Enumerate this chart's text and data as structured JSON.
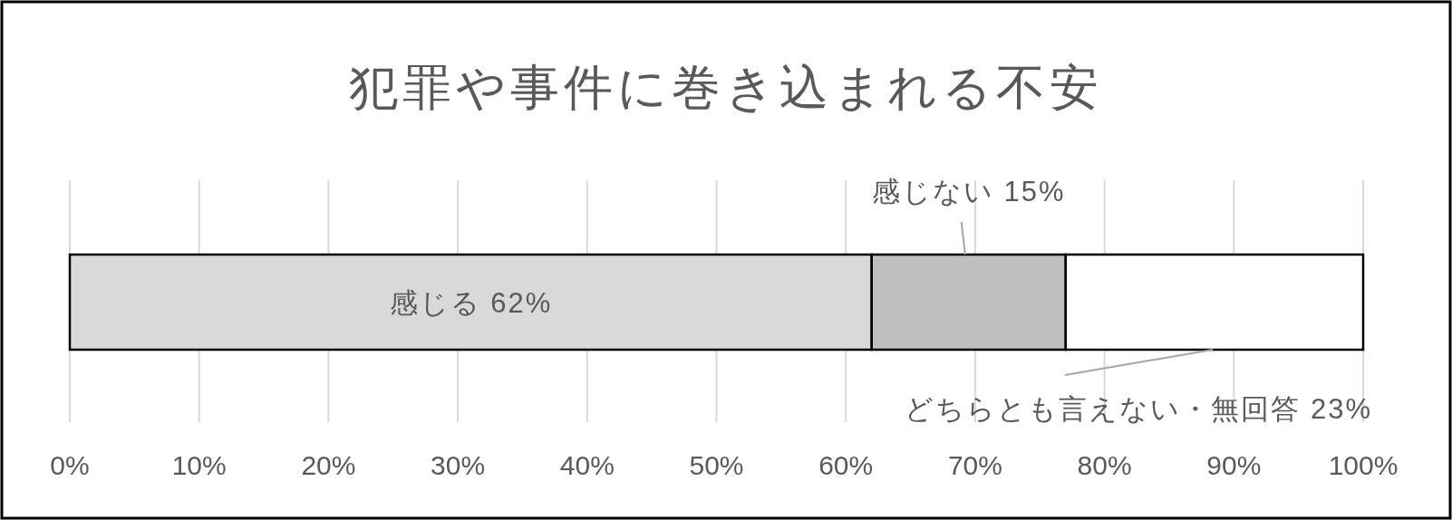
{
  "chart_data": {
    "type": "bar",
    "orientation": "horizontal",
    "stacked": true,
    "title": "犯罪や事件に巻き込まれる不安",
    "categories": [
      null
    ],
    "series": [
      {
        "name": "感じる",
        "color": "#d9d9d9",
        "values": [
          62
        ],
        "value_labels": [
          "62%"
        ]
      },
      {
        "name": "感じない",
        "color": "#bfbfbf",
        "values": [
          15
        ],
        "value_labels": [
          "15%"
        ]
      },
      {
        "name": "どちらとも言えない・無回答",
        "color": "#ffffff",
        "values": [
          23
        ],
        "value_labels": [
          "23%"
        ]
      }
    ],
    "xlim": [
      0,
      100
    ],
    "xticks": [
      {
        "value": 0,
        "label": "0%"
      },
      {
        "value": 10,
        "label": "10%"
      },
      {
        "value": 20,
        "label": "20%"
      },
      {
        "value": 30,
        "label": "30%"
      },
      {
        "value": 40,
        "label": "40%"
      },
      {
        "value": 50,
        "label": "50%"
      },
      {
        "value": 60,
        "label": "60%"
      },
      {
        "value": 70,
        "label": "70%"
      },
      {
        "value": 80,
        "label": "80%"
      },
      {
        "value": 90,
        "label": "90%"
      },
      {
        "value": 100,
        "label": "100%"
      }
    ],
    "grid": "x",
    "tick_labels": "x"
  }
}
